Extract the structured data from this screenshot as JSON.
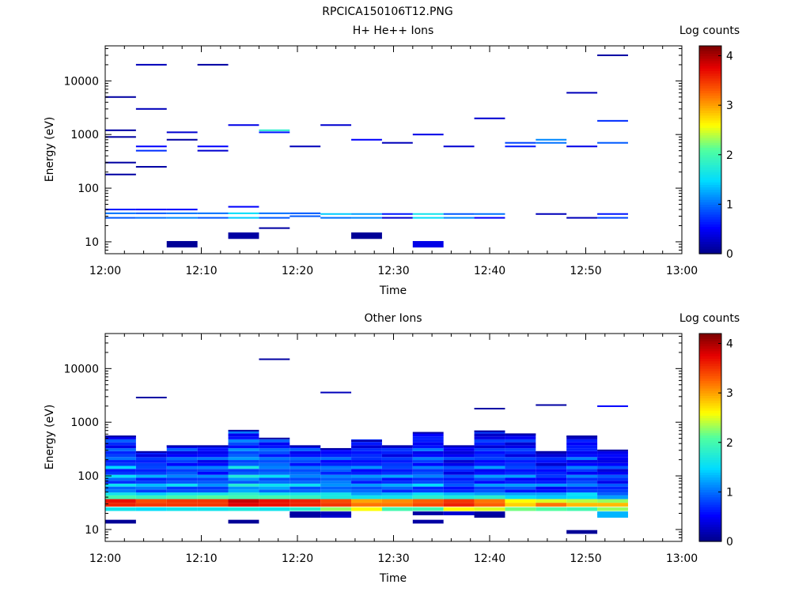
{
  "figure": {
    "title": "RPCICA150106T12.PNG"
  },
  "chart_data": [
    {
      "type": "heatmap",
      "title": "H+ He++ Ions",
      "xlabel": "Time",
      "ylabel": "Energy (eV)",
      "yscale": "log",
      "xlim": [
        "12:00",
        "13:00"
      ],
      "ylim": [
        6,
        45000
      ],
      "xticks": [
        "12:00",
        "12:10",
        "12:20",
        "12:30",
        "12:40",
        "12:50",
        "13:00"
      ],
      "yticks": [
        "10",
        "100",
        "1000",
        "10000"
      ],
      "colorbar": {
        "label": "Log counts",
        "range": [
          0,
          4.2
        ],
        "ticks": [
          "0",
          "1",
          "2",
          "3",
          "4"
        ]
      },
      "time_bins_minutes": [
        0,
        3.2,
        6.4,
        9.6,
        12.8,
        16,
        19.2,
        22.4,
        25.6,
        28.8,
        32,
        35.2,
        38.4,
        41.6,
        44.8,
        48,
        51.2,
        54.4
      ],
      "cells": [
        [
          0,
          1200,
          0.1
        ],
        [
          0,
          900,
          0.1
        ],
        [
          0,
          300,
          0.1
        ],
        [
          0,
          180,
          0.1
        ],
        [
          0,
          5000,
          0.1
        ],
        [
          0,
          34,
          1.0
        ],
        [
          0,
          28,
          0.9
        ],
        [
          0,
          40,
          0.6
        ],
        [
          1,
          20000,
          0.2
        ],
        [
          1,
          3000,
          0.2
        ],
        [
          1,
          600,
          0.5
        ],
        [
          1,
          500,
          0.7
        ],
        [
          1,
          250,
          0.1
        ],
        [
          1,
          34,
          0.9
        ],
        [
          1,
          28,
          1.0
        ],
        [
          1,
          40,
          0.5
        ],
        [
          2,
          9,
          0.05
        ],
        [
          2,
          1100,
          0.3
        ],
        [
          2,
          800,
          0.1
        ],
        [
          2,
          34,
          1.0
        ],
        [
          2,
          28,
          1.1
        ],
        [
          2,
          40,
          0.5
        ],
        [
          3,
          600,
          0.5
        ],
        [
          3,
          500,
          0.3
        ],
        [
          3,
          20000,
          0.1
        ],
        [
          3,
          34,
          1.0
        ],
        [
          3,
          28,
          0.9
        ],
        [
          4,
          13,
          0.1
        ],
        [
          4,
          1500,
          0.4
        ],
        [
          4,
          34,
          1.5
        ],
        [
          4,
          28,
          1.4
        ],
        [
          4,
          45,
          0.5
        ],
        [
          5,
          18,
          0.1
        ],
        [
          5,
          1200,
          1.8
        ],
        [
          5,
          1100,
          0.6
        ],
        [
          5,
          34,
          1.0
        ],
        [
          5,
          28,
          0.9
        ],
        [
          6,
          30,
          0.9
        ],
        [
          6,
          34,
          0.9
        ],
        [
          6,
          600,
          0.2
        ],
        [
          7,
          1500,
          0.3
        ],
        [
          7,
          33,
          1.4
        ],
        [
          7,
          28,
          1.0
        ],
        [
          8,
          13,
          0.05
        ],
        [
          8,
          800,
          0.5
        ],
        [
          8,
          33,
          1.2
        ],
        [
          8,
          28,
          1.1
        ],
        [
          9,
          28,
          0.3
        ],
        [
          9,
          33,
          0.6
        ],
        [
          9,
          700,
          0.2
        ],
        [
          10,
          9,
          0.4
        ],
        [
          10,
          33,
          1.6
        ],
        [
          10,
          28,
          1.5
        ],
        [
          10,
          1000,
          0.4
        ],
        [
          11,
          33,
          0.9
        ],
        [
          11,
          28,
          1.1
        ],
        [
          11,
          600,
          0.3
        ],
        [
          12,
          33,
          1.0
        ],
        [
          12,
          28,
          0.5
        ],
        [
          12,
          2000,
          0.3
        ],
        [
          13,
          700,
          0.8
        ],
        [
          13,
          600,
          0.6
        ],
        [
          14,
          33,
          0.2
        ],
        [
          14,
          800,
          1.1
        ],
        [
          14,
          700,
          1.0
        ],
        [
          15,
          28,
          0.2
        ],
        [
          15,
          6000,
          0.2
        ],
        [
          15,
          600,
          0.4
        ],
        [
          16,
          33,
          0.6
        ],
        [
          16,
          28,
          0.8
        ],
        [
          16,
          30000,
          0.1
        ],
        [
          16,
          1800,
          0.7
        ],
        [
          16,
          700,
          0.9
        ]
      ]
    },
    {
      "type": "heatmap",
      "title": "Other Ions",
      "xlabel": "Time",
      "ylabel": "Energy (eV)",
      "yscale": "log",
      "xlim": [
        "12:00",
        "13:00"
      ],
      "ylim": [
        6,
        45000
      ],
      "xticks": [
        "12:00",
        "12:10",
        "12:20",
        "12:30",
        "12:40",
        "12:50",
        "13:00"
      ],
      "yticks": [
        "10",
        "100",
        "1000",
        "10000"
      ],
      "colorbar": {
        "label": "Log counts",
        "range": [
          0,
          4.2
        ],
        "ticks": [
          "0",
          "1",
          "2",
          "3",
          "4"
        ]
      },
      "time_bins_minutes": [
        0,
        3.2,
        6.4,
        9.6,
        12.8,
        16,
        19.2,
        22.4,
        25.6,
        28.8,
        32,
        35.2,
        38.4,
        41.6,
        44.8,
        48,
        51.2,
        54.4
      ],
      "column_levels": [
        {
          "low": [
            14,
            0.05
          ],
          "cyan": 1.6,
          "mid": 0.8,
          "top": 550
        },
        {
          "low": null,
          "cyan": 1.3,
          "mid": 0.8,
          "top": 280,
          "extra": [
            2900,
            0.1
          ]
        },
        {
          "low": null,
          "cyan": 1.4,
          "mid": 0.8,
          "top": 360
        },
        {
          "low": null,
          "cyan": 1.3,
          "mid": 0.7,
          "top": 360
        },
        {
          "low": [
            14,
            0.05
          ],
          "cyan": 1.8,
          "mid": 1.0,
          "top": 700
        },
        {
          "low": null,
          "cyan": 1.5,
          "mid": 1.0,
          "top": 500,
          "extra": [
            15000,
            0.1
          ]
        },
        {
          "low": [
            18,
            0.1
          ],
          "cyan": 1.4,
          "mid": 0.9,
          "top": 360
        },
        {
          "low": [
            18,
            0.3
          ],
          "cyan": 1.3,
          "mid": 0.9,
          "top": 320,
          "extra": [
            3600,
            0.2
          ]
        },
        {
          "low": null,
          "cyan": 1.2,
          "mid": 0.7,
          "top": 450
        },
        {
          "low": null,
          "cyan": 1.2,
          "mid": 0.7,
          "top": 360
        },
        {
          "low": [
            14,
            0.1
          ],
          "cyan": 1.3,
          "mid": 0.7,
          "top": 640
        },
        {
          "low": null,
          "cyan": 1.0,
          "mid": 0.5,
          "top": 360
        },
        {
          "low": [
            18,
            0.05
          ],
          "cyan": 1.2,
          "mid": 0.6,
          "top": 680,
          "extra": [
            1800,
            0.1
          ]
        },
        {
          "low": null,
          "cyan": 1.1,
          "mid": 0.6,
          "top": 600
        },
        {
          "low": null,
          "cyan": 1.0,
          "mid": 0.5,
          "top": 280,
          "extra": [
            2100,
            0.1
          ]
        },
        {
          "low": [
            9,
            0.05
          ],
          "cyan": 1.2,
          "mid": 0.6,
          "top": 550
        },
        {
          "low": [
            18,
            1.3
          ],
          "cyan": 0.9,
          "mid": 0.5,
          "top": 300,
          "extra": [
            2000,
            0.5
          ]
        }
      ],
      "peak_rows": [
        {
          "energy": 40,
          "values": [
            2.0,
            1.9,
            2.0,
            2.1,
            2.0,
            2.0,
            1.9,
            1.7,
            1.6,
            1.6,
            1.8,
            1.7,
            1.8,
            1.5,
            1.4,
            1.5,
            1.2
          ]
        },
        {
          "energy": 34,
          "values": [
            3.7,
            3.4,
            3.5,
            3.5,
            3.9,
            3.7,
            3.6,
            3.4,
            3.0,
            3.1,
            3.3,
            3.5,
            3.2,
            2.6,
            2.5,
            2.4,
            2.3
          ]
        },
        {
          "energy": 29,
          "values": [
            3.6,
            3.5,
            3.5,
            3.5,
            3.8,
            3.7,
            3.6,
            3.5,
            3.2,
            3.2,
            3.4,
            3.6,
            3.3,
            2.8,
            3.2,
            2.9,
            2.9
          ]
        },
        {
          "energy": 24,
          "values": [
            1.6,
            1.5,
            1.6,
            1.6,
            1.7,
            1.6,
            1.8,
            2.3,
            2.6,
            2.0,
            2.0,
            2.6,
            2.5,
            2.2,
            2.1,
            2.0,
            2.3
          ]
        },
        {
          "energy": 20,
          "values": [
            0,
            0,
            0,
            0,
            0,
            0,
            0.1,
            0.2,
            0,
            0,
            0.1,
            0.3,
            0.1,
            0,
            0,
            0,
            1.3
          ]
        }
      ]
    }
  ]
}
